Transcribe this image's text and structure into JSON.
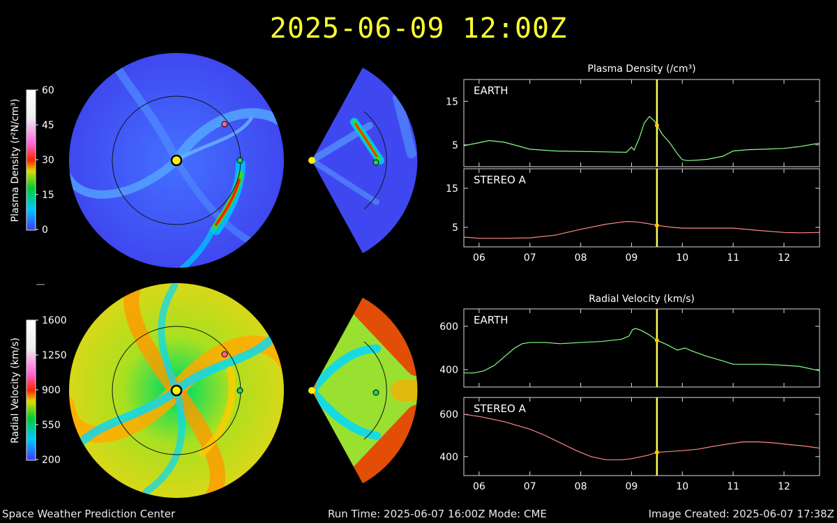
{
  "header": {
    "timestamp": "2025-06-09 12:00Z"
  },
  "footer": {
    "org": "Space Weather Prediction Center",
    "run_info": "Run Time: 2025-06-07 16:00Z  Mode: CME",
    "created": "Image Created: 2025-06-07 17:38Z"
  },
  "colorbars": [
    {
      "label": "Plasma Density (r²N/cm³)",
      "ticks": [
        "60",
        "45",
        "30",
        "15",
        "0"
      ]
    },
    {
      "label": "Radial Velocity (km/s)",
      "ticks": [
        "1600",
        "1250",
        "900",
        "550",
        "200"
      ]
    }
  ],
  "markers": {
    "sun_color": "#ffee00",
    "earth_color": "#22cc66",
    "stereo_a_color": "#ff6688"
  },
  "chart_data": [
    {
      "type": "line",
      "title": "Plasma Density (/cm³)",
      "panel": "EARTH",
      "xticks": [
        "06",
        "07",
        "08",
        "09",
        "10",
        "11",
        "12"
      ],
      "xlim": [
        5.7,
        12.7
      ],
      "ylim": [
        0,
        20
      ],
      "yticks": [
        5,
        15
      ],
      "color": "#88ff88",
      "current_time": 9.5,
      "x": [
        5.7,
        6.0,
        6.2,
        6.5,
        7.0,
        7.5,
        8.0,
        8.5,
        8.9,
        9.0,
        9.05,
        9.15,
        9.25,
        9.35,
        9.45,
        9.5,
        9.6,
        9.75,
        9.9,
        10.0,
        10.1,
        10.3,
        10.5,
        10.8,
        11.0,
        11.3,
        11.6,
        12.0,
        12.3,
        12.6,
        12.7
      ],
      "y": [
        4.8,
        5.5,
        6.0,
        5.6,
        4.0,
        3.6,
        3.5,
        3.4,
        3.3,
        4.5,
        3.8,
        6.5,
        10.0,
        11.5,
        10.5,
        9.5,
        7.5,
        5.5,
        3.0,
        1.6,
        1.4,
        1.5,
        1.7,
        2.4,
        3.6,
        3.9,
        4.0,
        4.2,
        4.6,
        5.2,
        5.4
      ]
    },
    {
      "type": "line",
      "panel": "STEREO A",
      "xticks": [
        "06",
        "07",
        "08",
        "09",
        "10",
        "11",
        "12"
      ],
      "xlim": [
        5.7,
        12.7
      ],
      "ylim": [
        0,
        20
      ],
      "yticks": [
        5,
        15
      ],
      "color": "#ff8888",
      "current_time": 9.5,
      "x": [
        5.7,
        6.0,
        6.5,
        7.0,
        7.5,
        8.0,
        8.5,
        8.9,
        9.1,
        9.3,
        9.5,
        9.8,
        10.0,
        10.5,
        11.0,
        11.5,
        12.0,
        12.3,
        12.7
      ],
      "y": [
        2.5,
        2.2,
        2.2,
        2.3,
        3.0,
        4.5,
        5.8,
        6.5,
        6.4,
        6.0,
        5.5,
        5.0,
        4.8,
        4.8,
        4.8,
        4.2,
        3.7,
        3.6,
        3.7
      ]
    },
    {
      "type": "line",
      "title": "Radial Velocity (km/s)",
      "panel": "EARTH",
      "xticks": [
        "06",
        "07",
        "08",
        "09",
        "10",
        "11",
        "12"
      ],
      "xlim": [
        5.7,
        12.7
      ],
      "ylim": [
        320,
        680
      ],
      "yticks": [
        400,
        600
      ],
      "color": "#88ff88",
      "current_time": 9.5,
      "x": [
        5.7,
        5.9,
        6.1,
        6.3,
        6.5,
        6.7,
        6.85,
        7.0,
        7.3,
        7.6,
        8.0,
        8.4,
        8.8,
        8.95,
        9.02,
        9.08,
        9.2,
        9.35,
        9.5,
        9.7,
        9.9,
        10.05,
        10.2,
        10.5,
        10.8,
        11.0,
        11.3,
        11.6,
        12.0,
        12.3,
        12.7
      ],
      "y": [
        385,
        385,
        395,
        420,
        460,
        500,
        520,
        525,
        525,
        520,
        525,
        530,
        540,
        555,
        585,
        590,
        580,
        560,
        535,
        515,
        490,
        500,
        485,
        460,
        440,
        425,
        425,
        425,
        420,
        415,
        395
      ]
    },
    {
      "type": "line",
      "panel": "STEREO A",
      "xticks": [
        "06",
        "07",
        "08",
        "09",
        "10",
        "11",
        "12"
      ],
      "xlim": [
        5.7,
        12.7
      ],
      "ylim": [
        310,
        680
      ],
      "yticks": [
        400,
        600
      ],
      "color": "#ff8888",
      "current_time": 9.5,
      "x": [
        5.7,
        6.0,
        6.5,
        7.0,
        7.3,
        7.6,
        7.9,
        8.2,
        8.5,
        8.8,
        9.0,
        9.3,
        9.5,
        9.8,
        10.0,
        10.3,
        10.6,
        10.9,
        11.2,
        11.5,
        11.8,
        12.1,
        12.4,
        12.7
      ],
      "y": [
        600,
        590,
        565,
        530,
        500,
        465,
        430,
        400,
        385,
        385,
        390,
        405,
        420,
        425,
        428,
        435,
        448,
        460,
        470,
        470,
        465,
        457,
        450,
        440
      ]
    }
  ]
}
